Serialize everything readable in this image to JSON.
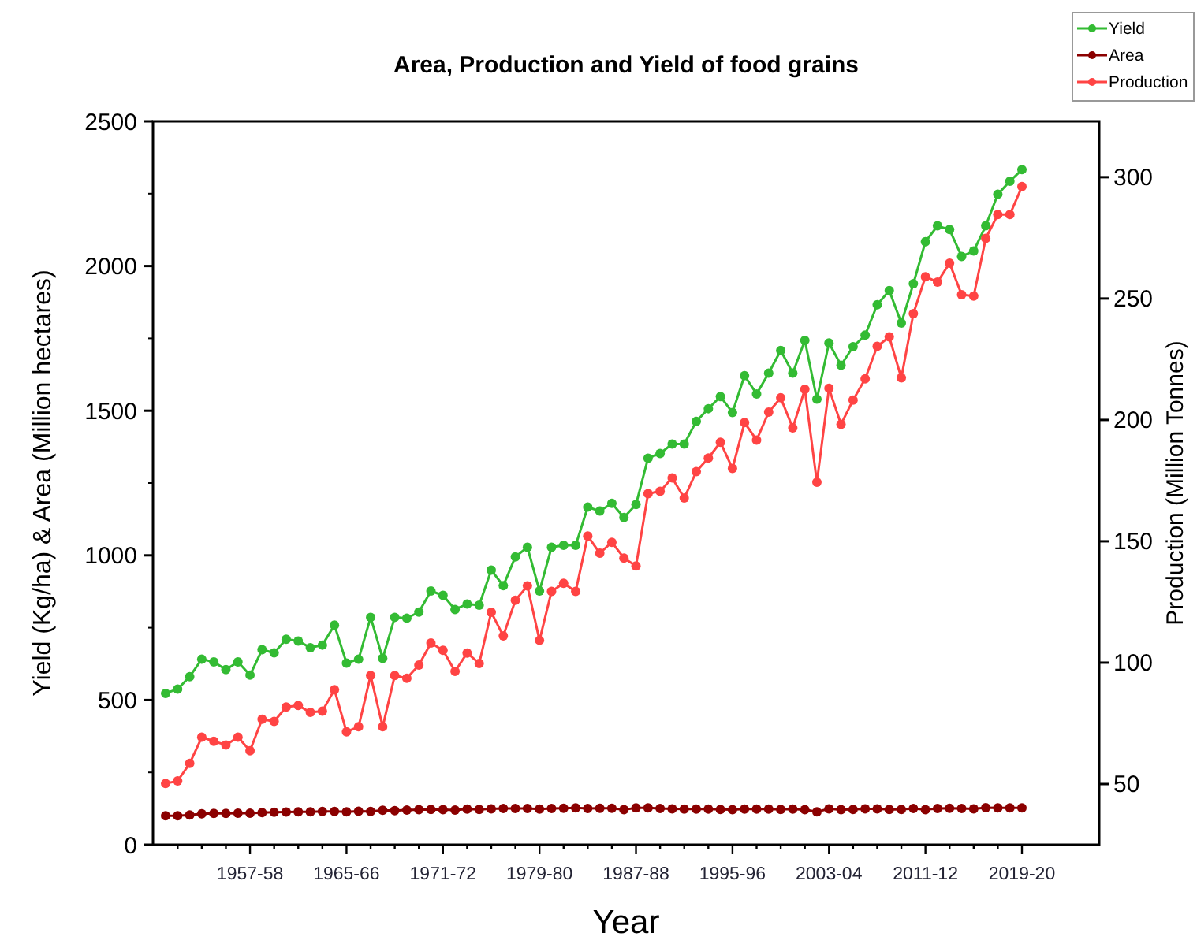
{
  "chart_data": {
    "type": "line",
    "title": "Area, Production and Yield of food grains",
    "xlabel": "Year",
    "ylabel": "Yield (Kg/ha) & Area (Million hectares)",
    "y2label": "Production (Million Tonnes)",
    "categories": [
      null,
      null,
      null,
      null,
      null,
      null,
      null,
      "1957-58",
      null,
      null,
      null,
      null,
      null,
      null,
      null,
      "1965-66",
      null,
      null,
      null,
      null,
      null,
      null,
      null,
      "1971-72",
      null,
      null,
      null,
      null,
      null,
      null,
      null,
      "1979-80",
      null,
      null,
      null,
      null,
      null,
      null,
      null,
      "1987-88",
      null,
      null,
      null,
      null,
      null,
      null,
      null,
      "1995-96",
      null,
      null,
      null,
      null,
      null,
      null,
      null,
      "2003-04",
      null,
      null,
      null,
      null,
      null,
      null,
      null,
      "2011-12",
      null,
      null,
      null,
      null,
      null,
      null,
      null,
      "2019-20"
    ],
    "ylim": [
      0,
      2500
    ],
    "yticks": [
      0,
      500,
      1000,
      1500,
      2000,
      2500
    ],
    "y2lim": [
      25,
      323
    ],
    "y2ticks": [
      50,
      100,
      150,
      200,
      250,
      300
    ],
    "legend": "top right",
    "marker": "circle",
    "line_style": "solid",
    "grid": false,
    "series": [
      {
        "name": "Yield",
        "color": "#33bb33",
        "values": [
          523,
          538,
          581,
          641,
          632,
          605,
          632,
          586,
          674,
          663,
          710,
          704,
          681,
          690,
          759,
          628,
          641,
          786,
          644,
          786,
          783,
          804,
          877,
          862,
          813,
          832,
          828,
          949,
          895,
          995,
          1028,
          877,
          1028,
          1035,
          1035,
          1167,
          1153,
          1180,
          1131,
          1176,
          1336,
          1352,
          1385,
          1385,
          1463,
          1507,
          1549,
          1494,
          1621,
          1558,
          1630,
          1708,
          1630,
          1743,
          1540,
          1734,
          1657,
          1721,
          1761,
          1866,
          1915,
          1803,
          1939,
          2084,
          2139,
          2126,
          2033,
          2052,
          2139,
          2248,
          2293,
          2333
        ]
      },
      {
        "name": "Area",
        "color": "#8b0000",
        "values": [
          100,
          100,
          103,
          107,
          108,
          108,
          109,
          109,
          111,
          112,
          113,
          114,
          114,
          115,
          115,
          114,
          116,
          115,
          119,
          118,
          120,
          121,
          122,
          121,
          120,
          123,
          122,
          124,
          125,
          125,
          125,
          123,
          125,
          126,
          127,
          125,
          126,
          126,
          121,
          127,
          127,
          125,
          124,
          123,
          123,
          123,
          122,
          121,
          123,
          123,
          123,
          122,
          123,
          121,
          114,
          124,
          121,
          122,
          124,
          124,
          122,
          122,
          125,
          121,
          125,
          126,
          125,
          124,
          128,
          127,
          127,
          127
        ]
      },
      {
        "name": "Production",
        "color": "#ff4444",
        "axis": "y2",
        "values": [
          50.2,
          51.3,
          58.5,
          69.3,
          67.6,
          66.1,
          69.3,
          63.7,
          76.7,
          75.8,
          81.7,
          82.4,
          79.5,
          80,
          88.9,
          71.5,
          73.6,
          94.7,
          73.6,
          94.7,
          93.6,
          99,
          108.1,
          105.1,
          96.4,
          104,
          99.7,
          120.8,
          111,
          125.7,
          131.6,
          109.2,
          129.4,
          132.7,
          129.4,
          152.2,
          145.1,
          149.6,
          143.1,
          139.8,
          169.6,
          170.6,
          176.1,
          167.8,
          178.7,
          184.3,
          190.8,
          180,
          198.9,
          191.7,
          203.2,
          209.1,
          196.7,
          212.6,
          174.3,
          213,
          198.2,
          208.2,
          216.9,
          230.3,
          234.2,
          217.3,
          243.8,
          259,
          256.8,
          264.6,
          251.6,
          251,
          274.8,
          284.6,
          284.6,
          296.1
        ]
      }
    ]
  }
}
